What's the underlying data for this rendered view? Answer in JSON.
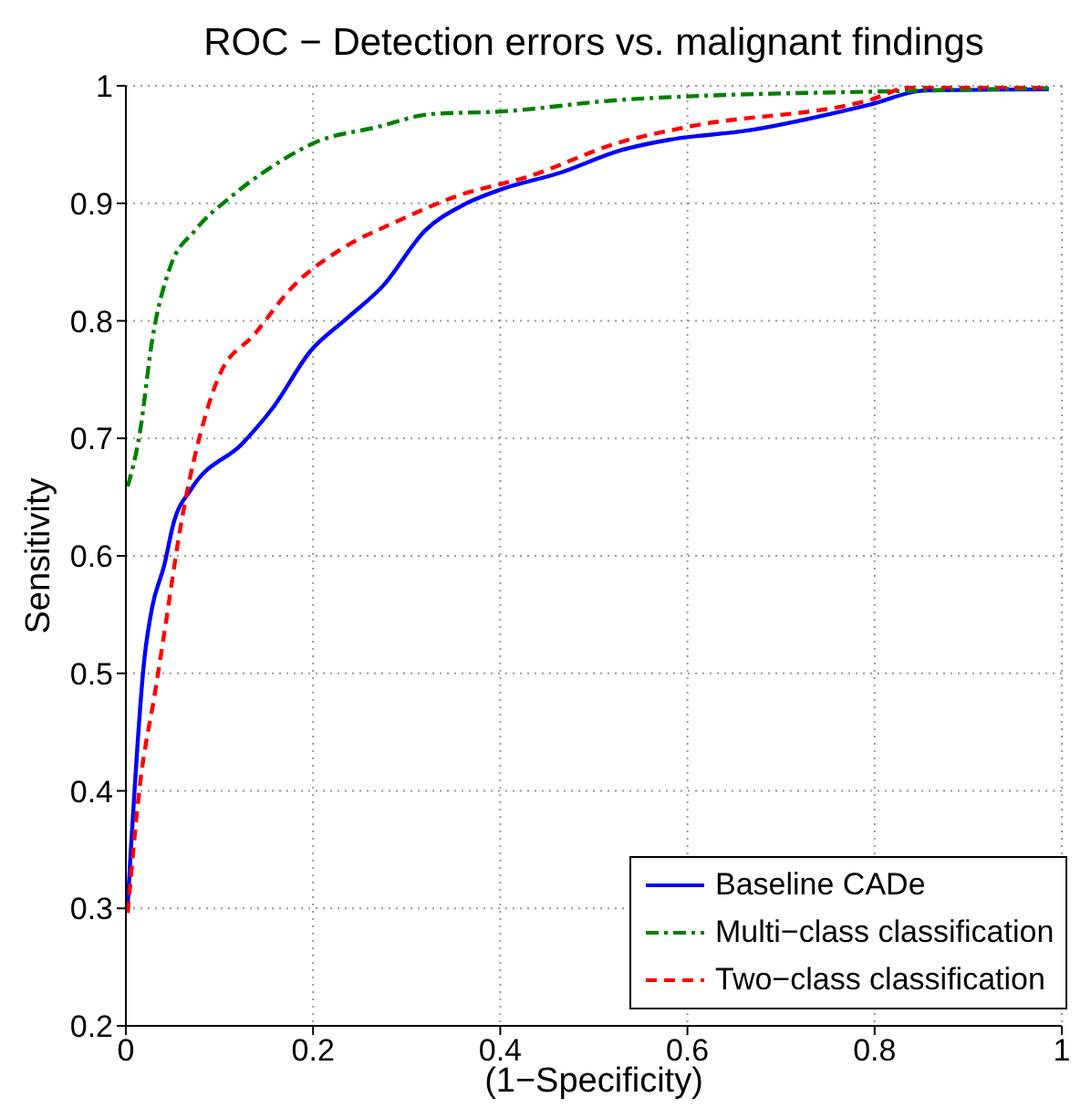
{
  "chart_data": {
    "type": "line",
    "title": "ROC − Detection errors vs. malignant findings",
    "xlabel": "(1−Specificity)",
    "ylabel": "Sensitivity",
    "xlim": [
      0,
      1
    ],
    "ylim": [
      0.2,
      1
    ],
    "xticks": [
      0,
      0.2,
      0.4,
      0.6,
      0.8,
      1
    ],
    "yticks": [
      0.2,
      0.3,
      0.4,
      0.5,
      0.6,
      0.7,
      0.8,
      0.9,
      1
    ],
    "grid": true,
    "legend": "bottom right",
    "marker": "none",
    "series": [
      {
        "name": "Baseline CADe",
        "color": "#0000ff",
        "line_style": "solid",
        "x": [
          0.002,
          0.02,
          0.028,
          0.041,
          0.051,
          0.07,
          0.125,
          0.158,
          0.197,
          0.236,
          0.275,
          0.32,
          0.359,
          0.398,
          0.464,
          0.528,
          0.58,
          0.665,
          0.795,
          0.854,
          0.986
        ],
        "values": [
          0.304,
          0.514,
          0.556,
          0.592,
          0.628,
          0.657,
          0.696,
          0.727,
          0.774,
          0.802,
          0.83,
          0.877,
          0.898,
          0.911,
          0.926,
          0.945,
          0.954,
          0.962,
          0.984,
          0.996,
          0.997
        ]
      },
      {
        "name": "Multi−class classification",
        "color": "#008000",
        "line_style": "dashdot",
        "x": [
          0.002,
          0.015,
          0.028,
          0.047,
          0.074,
          0.113,
          0.152,
          0.203,
          0.269,
          0.327,
          0.398,
          0.528,
          0.6,
          0.795,
          0.986
        ],
        "values": [
          0.659,
          0.705,
          0.783,
          0.845,
          0.877,
          0.906,
          0.929,
          0.952,
          0.965,
          0.976,
          0.978,
          0.988,
          0.991,
          0.995,
          0.998
        ]
      },
      {
        "name": "Two−class classification",
        "color": "#ff0000",
        "line_style": "dashed",
        "x": [
          0.002,
          0.015,
          0.031,
          0.041,
          0.057,
          0.064,
          0.08,
          0.099,
          0.138,
          0.177,
          0.23,
          0.288,
          0.353,
          0.431,
          0.528,
          0.6,
          0.795,
          0.84,
          0.986
        ],
        "values": [
          0.296,
          0.405,
          0.483,
          0.534,
          0.618,
          0.649,
          0.705,
          0.752,
          0.789,
          0.828,
          0.861,
          0.884,
          0.906,
          0.923,
          0.952,
          0.965,
          0.988,
          0.999,
          0.999
        ]
      }
    ]
  }
}
